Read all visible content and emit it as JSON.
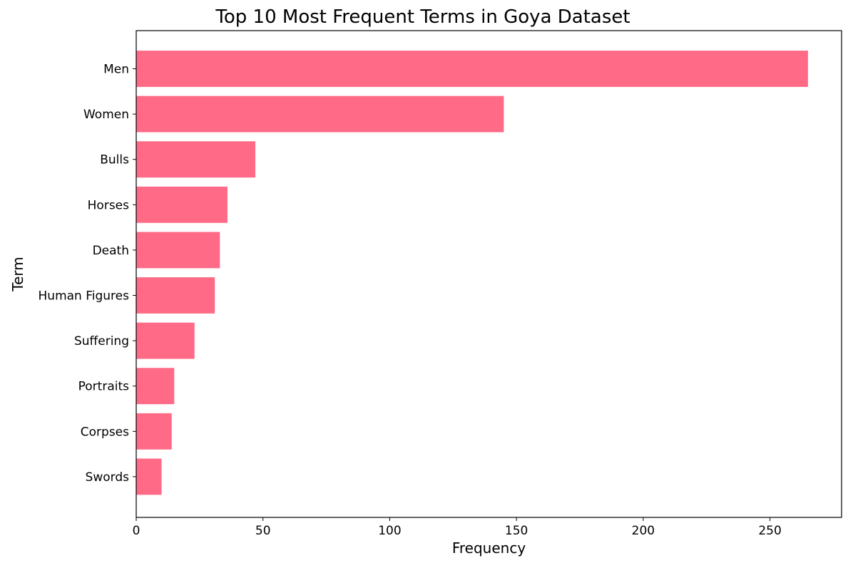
{
  "chart_data": {
    "type": "bar",
    "orientation": "horizontal",
    "title": "Top 10 Most Frequent Terms in Goya Dataset",
    "xlabel": "Frequency",
    "ylabel": "Term",
    "categories": [
      "Men",
      "Women",
      "Bulls",
      "Horses",
      "Death",
      "Human Figures",
      "Suffering",
      "Portraits",
      "Corpses",
      "Swords"
    ],
    "values": [
      265,
      145,
      47,
      36,
      33,
      31,
      23,
      15,
      14,
      10
    ],
    "xlim": [
      0,
      278.25
    ],
    "xticks": [
      0,
      50,
      100,
      150,
      200,
      250
    ],
    "grid": false,
    "bar_color": "#ff6b86"
  }
}
